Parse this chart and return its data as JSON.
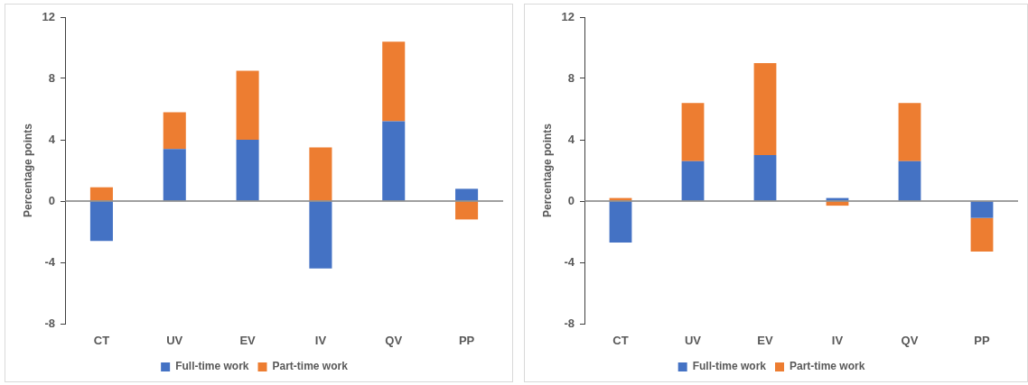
{
  "chart_data": [
    {
      "type": "bar",
      "stacked": true,
      "categories": [
        "CT",
        "UV",
        "EV",
        "IV",
        "QV",
        "PP"
      ],
      "ylabel": "Percentage points",
      "ylim": [
        -8,
        12
      ],
      "yticks": [
        -8,
        -4,
        0,
        4,
        8,
        12
      ],
      "legend": "bottom",
      "series": [
        {
          "name": "Full-time work",
          "color": "#4472c4",
          "values": [
            -2.6,
            3.4,
            4.0,
            -4.4,
            5.2,
            0.8
          ]
        },
        {
          "name": "Part-time work",
          "color": "#ed7d31",
          "values": [
            0.9,
            2.4,
            4.5,
            3.5,
            5.2,
            -1.2
          ]
        }
      ]
    },
    {
      "type": "bar",
      "stacked": true,
      "categories": [
        "CT",
        "UV",
        "EV",
        "IV",
        "QV",
        "PP"
      ],
      "ylabel": "Percentage points",
      "ylim": [
        -8,
        12
      ],
      "yticks": [
        -8,
        -4,
        0,
        4,
        8,
        12
      ],
      "legend": "bottom",
      "series": [
        {
          "name": "Full-time work",
          "color": "#4472c4",
          "values": [
            -2.7,
            2.6,
            3.0,
            0.2,
            2.6,
            -1.1
          ]
        },
        {
          "name": "Part-time work",
          "color": "#ed7d31",
          "values": [
            0.2,
            3.8,
            6.0,
            -0.3,
            3.8,
            -2.2
          ]
        }
      ]
    }
  ]
}
